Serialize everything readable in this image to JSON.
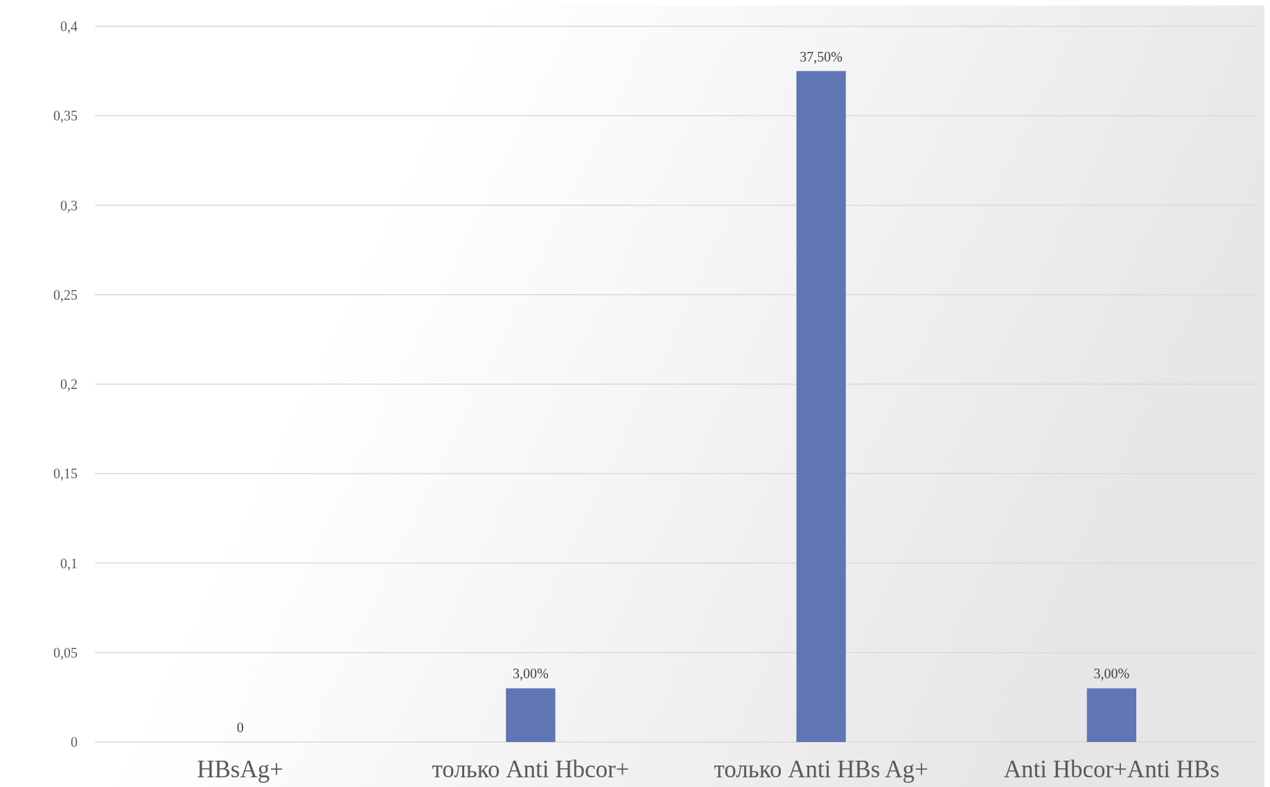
{
  "chart_data": {
    "type": "bar",
    "categories": [
      "HBsAg+",
      "только Anti Hbcor+",
      "только Anti HBs Ag+",
      "Anti Hbcor+Anti HBs"
    ],
    "values": [
      0,
      0.03,
      0.375,
      0.03
    ],
    "value_labels": [
      "0",
      "3,00%",
      "37,50%",
      "3,00%"
    ],
    "color": "#5f75b4",
    "ylim": [
      0,
      0.4
    ],
    "yticks": [
      0,
      {
        "value": 0.05,
        "label": "0,05"
      },
      {
        "value": 0.1,
        "label": "0,1"
      },
      {
        "value": 0.15,
        "label": "0,15"
      },
      {
        "value": 0.2,
        "label": "0,2"
      },
      {
        "value": 0.25,
        "label": "0,25"
      },
      {
        "value": 0.3,
        "label": "0,3"
      },
      {
        "value": 0.35,
        "label": "0,35"
      },
      {
        "value": 0.4,
        "label": "0,4"
      }
    ],
    "grid": "y"
  }
}
